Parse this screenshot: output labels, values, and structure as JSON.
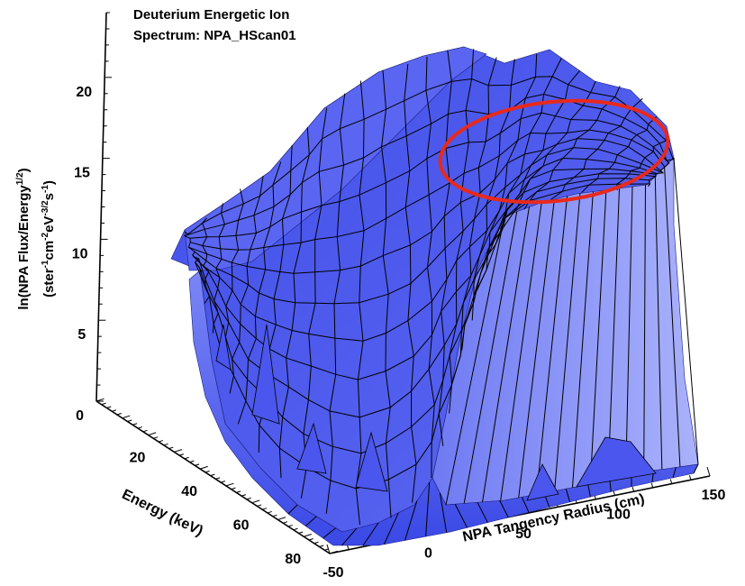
{
  "chart_data": {
    "type": "surface",
    "title": "Deuterium Energetic Ion",
    "subtitle": "Spectrum: NPA_HScan01",
    "zlabel": {
      "line1_pre": "ln(NPA Flux/Energy",
      "line1_sup": "1/2",
      "line1_post": ")",
      "line2_a": "(ster",
      "line2_sup1": "-1",
      "line2_b": "cm",
      "line2_sup2": "-2",
      "line2_c": "eV",
      "line2_sup3": "-3/2",
      "line2_d": "s",
      "line2_sup4": "-1",
      "line2_e": ")"
    },
    "xlabel": "NPA Tangency Radius (cm)",
    "ylabel": "Energy (keV)",
    "x_ticks": [
      "-50",
      "0",
      "50",
      "100",
      "150"
    ],
    "y_ticks": [
      "20",
      "40",
      "60",
      "80"
    ],
    "z_ticks": [
      "0",
      "5",
      "10",
      "15",
      "20"
    ],
    "xlim": [
      -50,
      150
    ],
    "ylim": [
      0,
      90
    ],
    "zlim": [
      0,
      24
    ],
    "surface_color": "#4a55ee",
    "mesh_color": "#000000",
    "highlight_color": "#e8291c",
    "highlight": "ellipse around the peak region"
  }
}
